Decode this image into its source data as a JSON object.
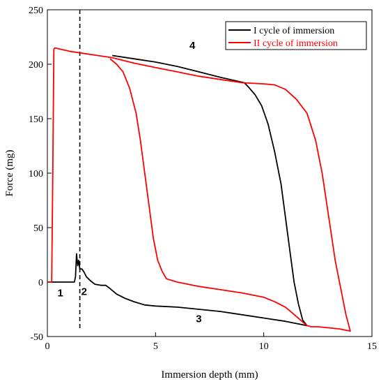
{
  "chart_data": {
    "type": "line",
    "xlabel": "Immersion depth (mm)",
    "ylabel": "Force (mg)",
    "xlim": [
      0,
      15
    ],
    "ylim": [
      -50,
      250
    ],
    "xticks": [
      0,
      5,
      10,
      15
    ],
    "yticks": [
      -50,
      0,
      50,
      100,
      150,
      200,
      250
    ],
    "grid": false,
    "legend_position": "top-right",
    "reference_line": {
      "x": 1.5,
      "style": "dashed",
      "color": "#000000"
    },
    "series": [
      {
        "name": "I cycle of immersion",
        "color": "#000000",
        "points": [
          [
            0,
            0
          ],
          [
            1.2,
            0
          ],
          [
            1.25,
            0
          ],
          [
            1.3,
            5
          ],
          [
            1.35,
            26
          ],
          [
            1.4,
            15
          ],
          [
            1.45,
            20
          ],
          [
            1.5,
            12
          ],
          [
            1.6,
            12
          ],
          [
            1.7,
            9
          ],
          [
            1.8,
            5
          ],
          [
            2.0,
            1
          ],
          [
            2.2,
            -2
          ],
          [
            2.5,
            -3
          ],
          [
            2.7,
            -3
          ],
          [
            2.9,
            -6
          ],
          [
            3.2,
            -11
          ],
          [
            3.6,
            -15
          ],
          [
            4.0,
            -18
          ],
          [
            4.5,
            -21
          ],
          [
            5.0,
            -22
          ],
          [
            6.0,
            -23
          ],
          [
            7.0,
            -25
          ],
          [
            8.0,
            -27
          ],
          [
            9.0,
            -30
          ],
          [
            10.0,
            -33
          ],
          [
            11.0,
            -36
          ],
          [
            12.0,
            -40
          ],
          [
            11.8,
            -35
          ],
          [
            11.6,
            -20
          ],
          [
            11.4,
            0
          ],
          [
            11.2,
            30
          ],
          [
            11.0,
            60
          ],
          [
            10.8,
            90
          ],
          [
            10.5,
            120
          ],
          [
            10.2,
            145
          ],
          [
            9.9,
            162
          ],
          [
            9.6,
            172
          ],
          [
            9.3,
            179
          ],
          [
            9.1,
            183
          ],
          [
            8.0,
            188
          ],
          [
            7.0,
            193
          ],
          [
            6.0,
            198
          ],
          [
            5.0,
            202
          ],
          [
            4.0,
            205
          ],
          [
            3.0,
            208
          ]
        ]
      },
      {
        "name": "II cycle of immersion",
        "color": "#ff0000",
        "points": [
          [
            0,
            0
          ],
          [
            0.2,
            0
          ],
          [
            0.25,
            100
          ],
          [
            0.3,
            214
          ],
          [
            0.35,
            215
          ],
          [
            1.0,
            212
          ],
          [
            2.0,
            209
          ],
          [
            3.0,
            206
          ],
          [
            4.0,
            201
          ],
          [
            5.0,
            197
          ],
          [
            6.0,
            193
          ],
          [
            7.0,
            189
          ],
          [
            8.0,
            186
          ],
          [
            9.0,
            183
          ],
          [
            10.0,
            182
          ],
          [
            10.5,
            181
          ],
          [
            11.0,
            177
          ],
          [
            11.5,
            168
          ],
          [
            12.0,
            155
          ],
          [
            12.4,
            130
          ],
          [
            12.7,
            100
          ],
          [
            13.0,
            60
          ],
          [
            13.3,
            20
          ],
          [
            13.6,
            -10
          ],
          [
            13.8,
            -30
          ],
          [
            14.0,
            -45
          ],
          [
            13.5,
            -43
          ],
          [
            13.0,
            -42
          ],
          [
            12.5,
            -41
          ],
          [
            12.2,
            -41
          ],
          [
            12.0,
            -40
          ],
          [
            11.7,
            -35
          ],
          [
            11.3,
            -28
          ],
          [
            11.0,
            -23
          ],
          [
            10.5,
            -18
          ],
          [
            10.0,
            -14
          ],
          [
            9.0,
            -10
          ],
          [
            8.0,
            -7
          ],
          [
            7.0,
            -4
          ],
          [
            6.0,
            0
          ],
          [
            5.5,
            3
          ],
          [
            5.3,
            10
          ],
          [
            5.1,
            20
          ],
          [
            4.9,
            40
          ],
          [
            4.7,
            70
          ],
          [
            4.5,
            100
          ],
          [
            4.3,
            130
          ],
          [
            4.1,
            155
          ],
          [
            3.8,
            178
          ],
          [
            3.5,
            193
          ],
          [
            3.2,
            200
          ],
          [
            2.9,
            205
          ]
        ]
      }
    ],
    "annotations": [
      {
        "text": "1",
        "x": 0.6,
        "y": -13
      },
      {
        "text": "2",
        "x": 1.7,
        "y": -12
      },
      {
        "text": "3",
        "x": 7.0,
        "y": -37
      },
      {
        "text": "4",
        "x": 6.7,
        "y": 214
      }
    ]
  }
}
